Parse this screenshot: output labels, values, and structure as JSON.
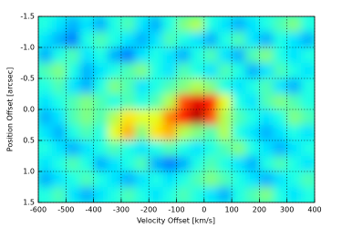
{
  "chart_data": {
    "type": "heatmap",
    "xlabel": "Velocity Offset [km/s]",
    "ylabel": "Position Offset [arcsec]",
    "xlim": [
      -600,
      400
    ],
    "xticks": [
      -600,
      -500,
      -400,
      -300,
      -200,
      -100,
      0,
      100,
      200,
      300,
      400
    ],
    "ylim": [
      1.5,
      -1.5
    ],
    "yticks": [
      -1.5,
      {
        "value": -1.0,
        "label": "-1.0"
      },
      -0.5,
      {
        "value": 0.0,
        "label": "0.0"
      },
      0.5,
      {
        "value": 1.0,
        "label": "1.0"
      },
      1.5
    ],
    "grid": true,
    "colormap": "jet",
    "x": [
      -575,
      -525,
      -475,
      -425,
      -375,
      -325,
      -275,
      -225,
      -175,
      -125,
      -75,
      -25,
      25,
      75,
      125,
      175,
      225,
      275,
      325,
      375
    ],
    "y": [
      -1.375,
      -1.125,
      -0.875,
      -0.625,
      -0.375,
      -0.125,
      0.125,
      0.375,
      0.625,
      0.875,
      1.125,
      1.375
    ],
    "z": [
      [
        0.4,
        0.35,
        0.3,
        0.35,
        0.3,
        0.4,
        0.45,
        0.35,
        0.3,
        0.4,
        0.5,
        0.55,
        0.4,
        0.35,
        0.3,
        0.35,
        0.4,
        0.45,
        0.5,
        0.4
      ],
      [
        0.35,
        0.3,
        0.25,
        0.4,
        0.45,
        0.4,
        0.35,
        0.3,
        0.35,
        0.45,
        0.4,
        0.35,
        0.3,
        0.4,
        0.45,
        0.35,
        0.3,
        0.4,
        0.35,
        0.3
      ],
      [
        0.3,
        0.4,
        0.45,
        0.35,
        0.4,
        0.3,
        0.25,
        0.35,
        0.4,
        0.35,
        0.3,
        0.4,
        0.45,
        0.35,
        0.3,
        0.45,
        0.5,
        0.4,
        0.35,
        0.4
      ],
      [
        0.45,
        0.5,
        0.4,
        0.3,
        0.35,
        0.4,
        0.45,
        0.5,
        0.4,
        0.35,
        0.45,
        0.4,
        0.35,
        0.45,
        0.4,
        0.3,
        0.35,
        0.45,
        0.4,
        0.35
      ],
      [
        0.4,
        0.45,
        0.35,
        0.3,
        0.4,
        0.5,
        0.45,
        0.35,
        0.4,
        0.45,
        0.5,
        0.55,
        0.5,
        0.4,
        0.35,
        0.4,
        0.45,
        0.35,
        0.3,
        0.4
      ],
      [
        0.35,
        0.4,
        0.45,
        0.5,
        0.45,
        0.4,
        0.45,
        0.4,
        0.45,
        0.55,
        0.8,
        0.9,
        0.85,
        0.6,
        0.4,
        0.35,
        0.45,
        0.5,
        0.45,
        0.4
      ],
      [
        0.3,
        0.35,
        0.45,
        0.5,
        0.45,
        0.55,
        0.65,
        0.6,
        0.6,
        0.75,
        0.85,
        0.95,
        0.8,
        0.55,
        0.45,
        0.4,
        0.35,
        0.4,
        0.5,
        0.45
      ],
      [
        0.35,
        0.3,
        0.4,
        0.45,
        0.4,
        0.6,
        0.7,
        0.5,
        0.65,
        0.7,
        0.55,
        0.5,
        0.45,
        0.55,
        0.4,
        0.35,
        0.3,
        0.35,
        0.4,
        0.35
      ],
      [
        0.4,
        0.35,
        0.3,
        0.35,
        0.4,
        0.45,
        0.4,
        0.35,
        0.4,
        0.45,
        0.4,
        0.35,
        0.4,
        0.45,
        0.5,
        0.4,
        0.35,
        0.3,
        0.35,
        0.4
      ],
      [
        0.35,
        0.4,
        0.45,
        0.4,
        0.3,
        0.35,
        0.4,
        0.45,
        0.3,
        0.25,
        0.3,
        0.4,
        0.45,
        0.4,
        0.35,
        0.3,
        0.4,
        0.45,
        0.4,
        0.35
      ],
      [
        0.3,
        0.35,
        0.4,
        0.45,
        0.4,
        0.35,
        0.3,
        0.35,
        0.4,
        0.35,
        0.4,
        0.45,
        0.5,
        0.45,
        0.4,
        0.35,
        0.3,
        0.35,
        0.4,
        0.45
      ],
      [
        0.4,
        0.45,
        0.35,
        0.3,
        0.35,
        0.4,
        0.45,
        0.4,
        0.35,
        0.4,
        0.45,
        0.4,
        0.35,
        0.3,
        0.4,
        0.45,
        0.5,
        0.4,
        0.35,
        0.4
      ]
    ]
  }
}
